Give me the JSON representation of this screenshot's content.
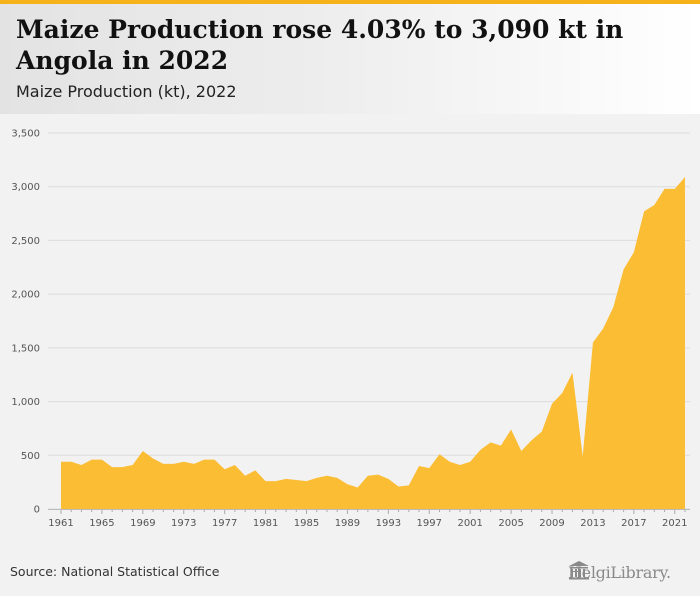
{
  "header": {
    "title": "Maize Production rose 4.03% to 3,090 kt in Angola in 2022",
    "subtitle": "Maize Production (kt), 2022"
  },
  "footer": {
    "source": "Source: National Statistical Office",
    "brand": "HelgiLibrary."
  },
  "colors": {
    "accent": "#f5b21a",
    "area": "#fbbd34"
  },
  "chart_data": {
    "type": "area",
    "title": "Maize Production rose 4.03% to 3,090 kt in Angola in 2022",
    "subtitle": "Maize Production (kt), 2022",
    "xlabel": "",
    "ylabel": "",
    "xlim": [
      1961,
      2022
    ],
    "ylim": [
      0,
      3500
    ],
    "yticks": [
      0,
      500,
      1000,
      1500,
      2000,
      2500,
      3000,
      3500
    ],
    "ytick_labels": [
      "0",
      "500",
      "1,000",
      "1,500",
      "2,000",
      "2,500",
      "3,000",
      "3,500"
    ],
    "xticks": [
      1961,
      1965,
      1969,
      1973,
      1977,
      1981,
      1985,
      1989,
      1993,
      1997,
      2001,
      2005,
      2009,
      2013,
      2017,
      2021
    ],
    "grid": true,
    "series": [
      {
        "x": [
          1961,
          1962,
          1963,
          1964,
          1965,
          1966,
          1967,
          1968,
          1969,
          1970,
          1971,
          1972,
          1973,
          1974,
          1975,
          1976,
          1977,
          1978,
          1979,
          1980,
          1981,
          1982,
          1983,
          1984,
          1985,
          1986,
          1987,
          1988,
          1989,
          1990,
          1991,
          1992,
          1993,
          1994,
          1995,
          1996,
          1997,
          1998,
          1999,
          2000,
          2001,
          2002,
          2003,
          2004,
          2005,
          2006,
          2007,
          2008,
          2009,
          2010,
          2011,
          2012,
          2013,
          2014,
          2015,
          2016,
          2017,
          2018,
          2019,
          2020,
          2021,
          2022
        ],
        "values": [
          440,
          440,
          410,
          460,
          460,
          390,
          390,
          410,
          540,
          470,
          420,
          420,
          440,
          420,
          460,
          460,
          370,
          410,
          310,
          360,
          260,
          260,
          280,
          270,
          260,
          290,
          310,
          290,
          230,
          200,
          310,
          320,
          280,
          210,
          220,
          400,
          380,
          510,
          440,
          410,
          440,
          550,
          620,
          590,
          740,
          540,
          640,
          720,
          980,
          1080,
          1270,
          490,
          1550,
          1680,
          1880,
          2230,
          2390,
          2770,
          2830,
          2980,
          2980,
          3090
        ]
      }
    ]
  }
}
